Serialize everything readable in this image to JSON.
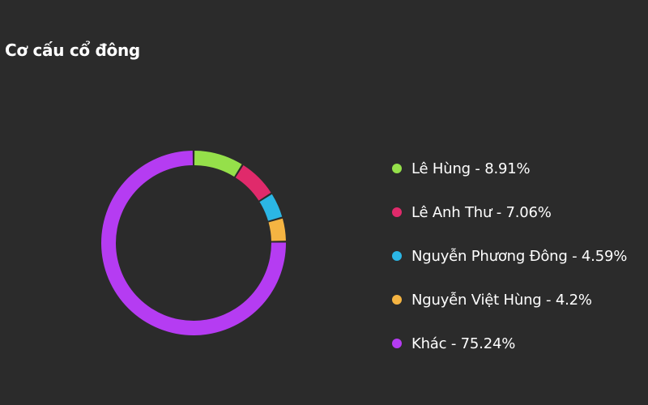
{
  "header": {
    "title": "Cơ cấu cổ đông"
  },
  "chart_data": {
    "type": "pie",
    "variant": "donut",
    "title": "Cơ cấu cổ đông",
    "legend_position": "right",
    "slices": [
      {
        "label": "Lê Hùng - 8.91%",
        "value": 8.91,
        "color": "#95e04a"
      },
      {
        "label": "Lê Anh Thư - 7.06%",
        "value": 7.06,
        "color": "#e02a6b"
      },
      {
        "label": "Nguyễn Phương Đông - 4.59%",
        "value": 4.59,
        "color": "#2bb6e5"
      },
      {
        "label": "Nguyễn Việt Hùng - 4.2%",
        "value": 4.2,
        "color": "#f5b442"
      },
      {
        "label": "Khác - 75.24%",
        "value": 75.24,
        "color": "#b53cf2"
      }
    ]
  }
}
